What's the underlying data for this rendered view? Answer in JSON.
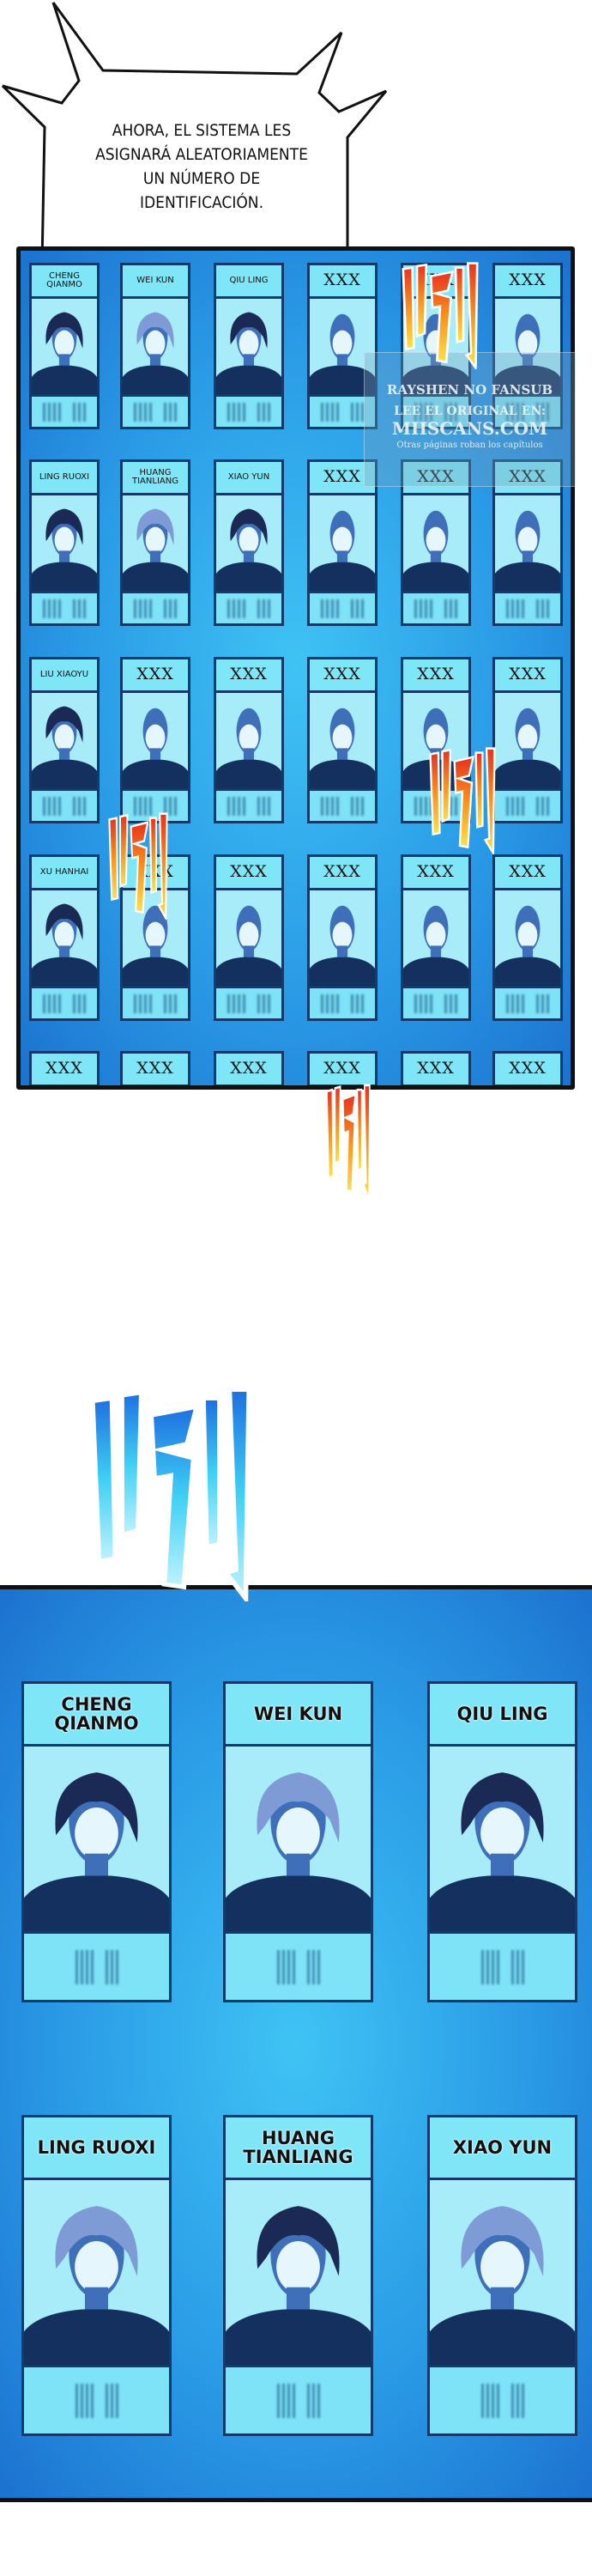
{
  "speech_bubble": {
    "lines": [
      "AHORA, EL SISTEMA LES",
      "ASIGNARÁ ALEATORIAMENTE",
      "UN NÚMERO DE",
      "IDENTIFICACIÓN."
    ]
  },
  "watermark": {
    "line1": "RAYSHEN NO FANSUB",
    "line2": "LEE EL ORIGINAL EN:",
    "line3": "MHSCANS.COM",
    "line4": "Otras páginas roban los capítulos"
  },
  "top_grid": {
    "rows": [
      [
        "CHENG QIANMO",
        "WEI KUN",
        "QIU LING",
        "XXX",
        "XXX",
        "XXX"
      ],
      [
        "LING RUOXI",
        "HUANG TIANLIANG",
        "XIAO YUN",
        "XXX",
        "XXX",
        "XXX"
      ],
      [
        "LIU XIAOYU",
        "XXX",
        "XXX",
        "XXX",
        "XXX",
        "XXX"
      ],
      [
        "XU HANHAI",
        "XXX",
        "XXX",
        "XXX",
        "XXX",
        "XXX"
      ],
      [
        "XXX",
        "XXX",
        "XXX",
        "XXX",
        "XXX",
        "XXX"
      ]
    ]
  },
  "bottom_grid": {
    "cards": [
      "CHENG QIANMO",
      "WEI KUN",
      "QIU LING",
      "LING RUOXI",
      "HUANG TIANLIANG",
      "XIAO YUN"
    ]
  },
  "colors": {
    "panel_blue": "#2a9be6",
    "card_cyan": "#7fe3f7",
    "card_border": "#123b6b",
    "sfx_orange": "#f7931e",
    "sfx_red": "#e8321e",
    "sfx_blue": "#1e8fe8"
  },
  "sfx": {
    "icon": "whoosh-sound-effect"
  }
}
